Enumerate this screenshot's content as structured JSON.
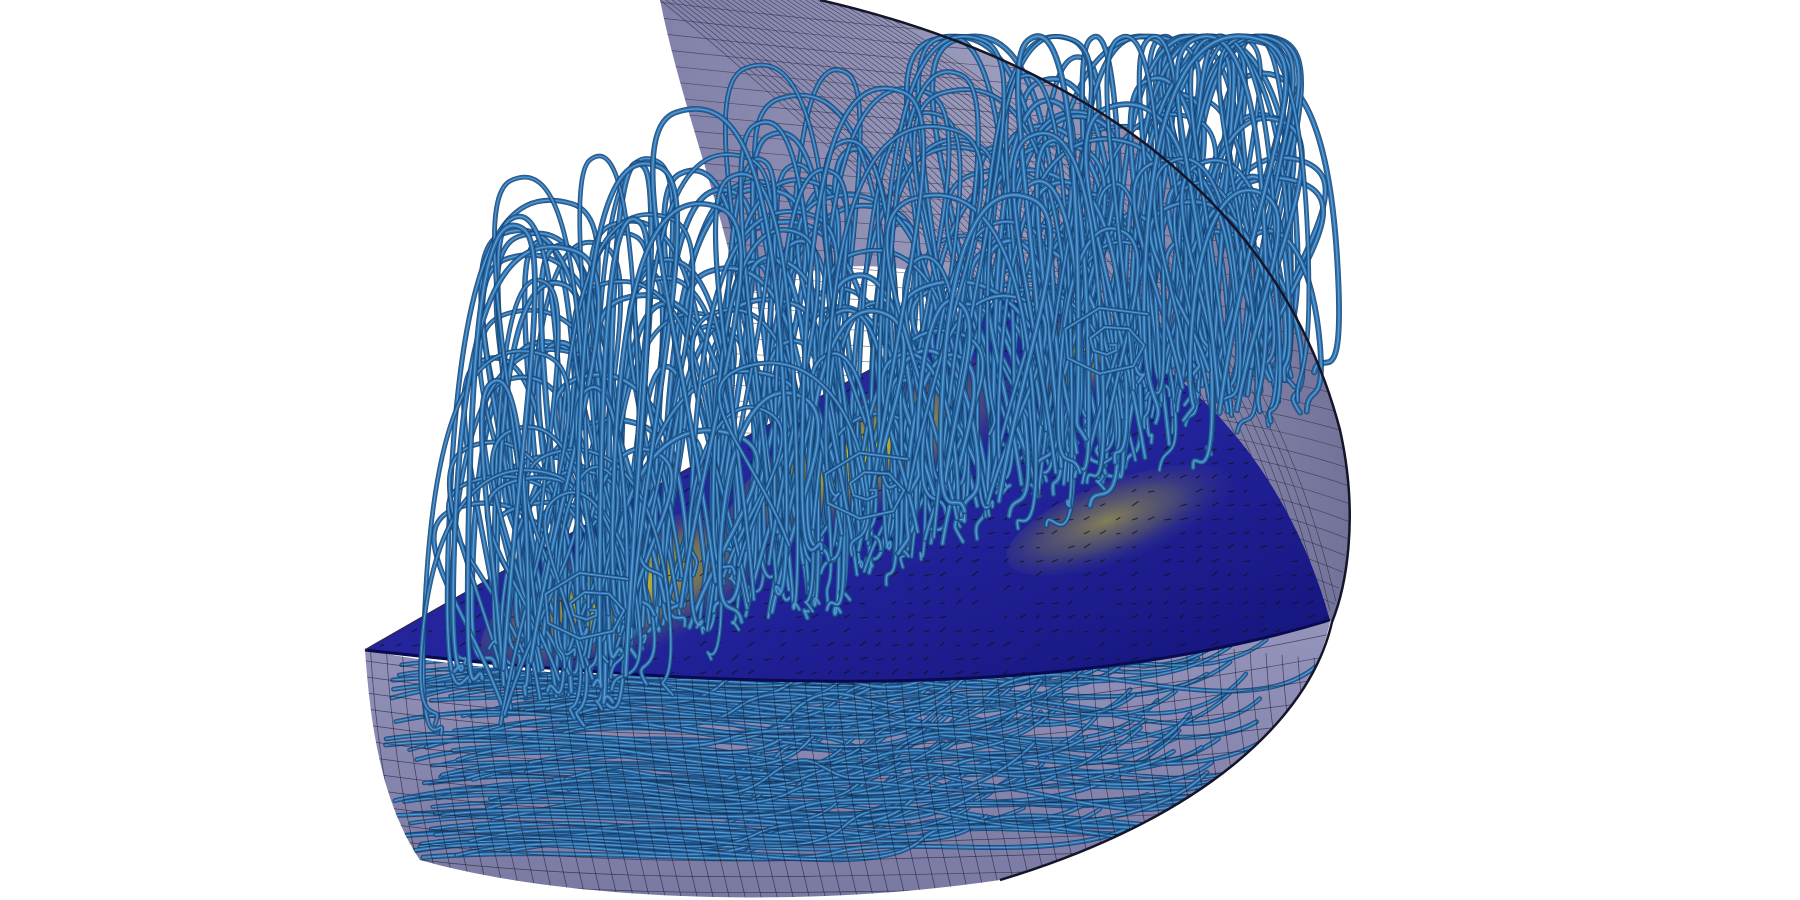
{
  "scene": {
    "description_visible_text": "",
    "background_color": "#ffffff",
    "colors": {
      "mesh_fill": "#7e7ea8",
      "mesh_fill_dark": "#4a4a78",
      "mesh_line": "#1c1c2e",
      "slice_base": "#1a1a8a",
      "slice_mid": "#3a3ab0",
      "slice_hot": "#d8d020",
      "slice_warm": "#8a8a4a",
      "streamline_main": "#2a6aa8",
      "streamline_highlight": "#6ab0e0",
      "streamline_dark": "#15406e",
      "arrow_color": "#111111"
    },
    "streamline_count_upper": 220,
    "streamline_count_lower": 120
  }
}
